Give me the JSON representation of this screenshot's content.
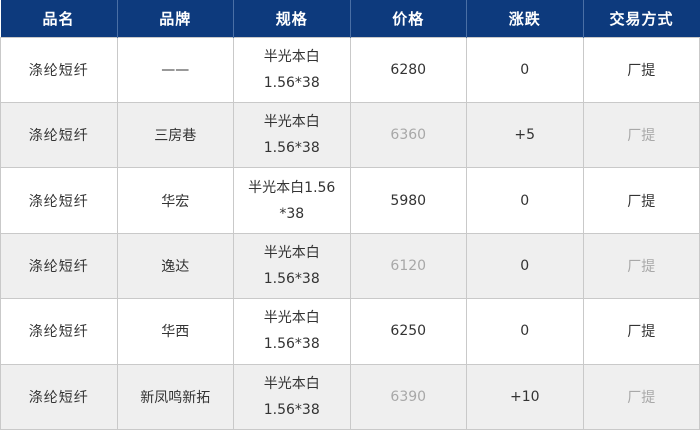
{
  "table": {
    "columns": [
      "品名",
      "品牌",
      "规格",
      "价格",
      "涨跌",
      "交易方式"
    ],
    "rows": [
      {
        "name": "涤纶短纤",
        "brand": "——",
        "spec_line1": "半光本白",
        "spec_line2": "1.56*38",
        "price": "6280",
        "change": "0",
        "trade": "厂提"
      },
      {
        "name": "涤纶短纤",
        "brand": "三房巷",
        "spec_line1": "半光本白",
        "spec_line2": "1.56*38",
        "price": "6360",
        "change": "+5",
        "trade": "厂提"
      },
      {
        "name": "涤纶短纤",
        "brand": "华宏",
        "spec_line1": "半光本白1.56",
        "spec_line2": "*38",
        "price": "5980",
        "change": "0",
        "trade": "厂提"
      },
      {
        "name": "涤纶短纤",
        "brand": "逸达",
        "spec_line1": "半光本白",
        "spec_line2": "1.56*38",
        "price": "6120",
        "change": "0",
        "trade": "厂提"
      },
      {
        "name": "涤纶短纤",
        "brand": "华西",
        "spec_line1": "半光本白",
        "spec_line2": "1.56*38",
        "price": "6250",
        "change": "0",
        "trade": "厂提"
      },
      {
        "name": "涤纶短纤",
        "brand": "新凤鸣新拓",
        "spec_line1": "半光本白",
        "spec_line2": "1.56*38",
        "price": "6390",
        "change": "+10",
        "trade": "厂提"
      }
    ]
  },
  "colors": {
    "header_bg": "#0d3a7d",
    "header_divider": "#4a6fa5",
    "header_text": "#ffffff",
    "grid_line": "#c9c9c9",
    "row_alt_bg": "#efefef",
    "text": "#333333",
    "muted_text": "#a8a8a8"
  },
  "chart_data": {
    "type": "table",
    "title": "",
    "columns": [
      "品名",
      "品牌",
      "规格",
      "价格",
      "涨跌",
      "交易方式"
    ],
    "rows": [
      [
        "涤纶短纤",
        "——",
        "半光本白 1.56*38",
        "6280",
        "0",
        "厂提"
      ],
      [
        "涤纶短纤",
        "三房巷",
        "半光本白 1.56*38",
        "6360",
        "+5",
        "厂提"
      ],
      [
        "涤纶短纤",
        "华宏",
        "半光本白1.56*38",
        "5980",
        "0",
        "厂提"
      ],
      [
        "涤纶短纤",
        "逸达",
        "半光本白 1.56*38",
        "6120",
        "0",
        "厂提"
      ],
      [
        "涤纶短纤",
        "华西",
        "半光本白 1.56*38",
        "6250",
        "0",
        "厂提"
      ],
      [
        "涤纶短纤",
        "新凤鸣新拓",
        "半光本白 1.56*38",
        "6390",
        "+10",
        "厂提"
      ]
    ]
  }
}
